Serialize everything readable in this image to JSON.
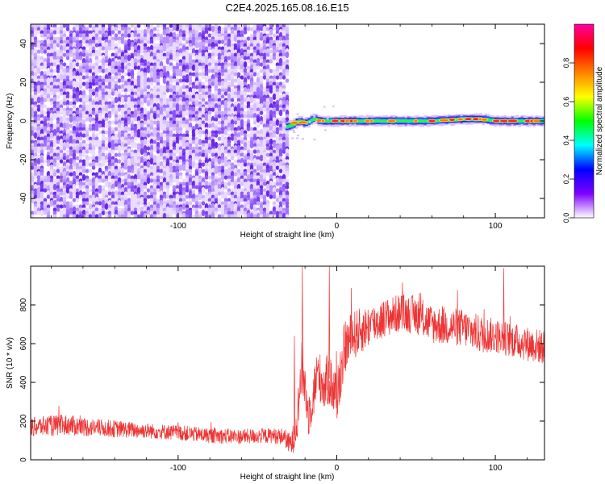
{
  "title": "C2E4.2025.165.08.16.E15",
  "chart_data": [
    {
      "type": "heatmap",
      "name": "spectrogram",
      "xlabel": "Height of straight line (km)",
      "ylabel": "Frequency (Hz)",
      "xlim": [
        -193,
        131
      ],
      "ylim": [
        -50,
        50
      ],
      "x_ticks": [
        -100,
        0,
        100
      ],
      "x_tick_labels": [
        "-100",
        "0",
        "100"
      ],
      "y_ticks": [
        -40,
        -20,
        0,
        20,
        40
      ],
      "y_tick_labels": [
        "-40",
        "-20",
        "0",
        "20",
        "40"
      ],
      "noise_region_x": [
        -193,
        -32
      ],
      "tone_region_x": [
        -32,
        131
      ],
      "tone_frequency": 0,
      "tone_track": {
        "x": [
          -32,
          -28,
          -25,
          -20,
          -15,
          -10,
          0,
          10,
          20,
          40,
          60,
          80,
          90,
          100,
          110,
          131
        ],
        "y": [
          -3,
          -2,
          0,
          -1,
          1,
          0,
          0,
          0,
          0,
          0,
          0,
          1,
          1,
          0,
          0,
          0
        ]
      },
      "grid": false,
      "colorbar": {
        "label": "Normalized spectral amplitude",
        "range": [
          0.0,
          1.0
        ],
        "ticks": [
          0.0,
          0.2,
          0.4,
          0.6,
          0.8
        ],
        "tick_labels": [
          "0.0",
          "0.2",
          "0.4",
          "0.6",
          "0.8"
        ],
        "colors": [
          "#ffffff",
          "#7f00ff",
          "#0000ff",
          "#00ffff",
          "#00ff00",
          "#ffff00",
          "#ff8000",
          "#ff0000",
          "#ff00a0"
        ]
      }
    },
    {
      "type": "line",
      "name": "snr",
      "xlabel": "Height of straight line (km)",
      "ylabel": "SNR (10 * v/v)",
      "xlim": [
        -193,
        131
      ],
      "ylim": [
        0,
        1000
      ],
      "x_ticks": [
        -100,
        0,
        100
      ],
      "x_tick_labels": [
        "-100",
        "0",
        "100"
      ],
      "y_ticks": [
        0,
        200,
        400,
        600,
        800
      ],
      "y_tick_labels": [
        "0",
        "200",
        "400",
        "600",
        "800"
      ],
      "line_color": "#ee3333",
      "grid": false,
      "series": [
        {
          "x": [
            -193,
            -180,
            -170,
            -160,
            -150,
            -140,
            -120,
            -100,
            -80,
            -60,
            -40,
            -33,
            -30,
            -28,
            -25,
            -22,
            -20,
            -18,
            -15,
            -12,
            -8,
            -5,
            0,
            5,
            10,
            20,
            30,
            40,
            50,
            60,
            70,
            80,
            90,
            100,
            110,
            120,
            131
          ],
          "y": [
            170,
            175,
            180,
            170,
            165,
            160,
            150,
            140,
            125,
            120,
            125,
            120,
            80,
            90,
            210,
            480,
            380,
            230,
            330,
            450,
            380,
            420,
            330,
            580,
            640,
            690,
            730,
            760,
            750,
            700,
            690,
            680,
            650,
            640,
            620,
            600,
            580
          ],
          "band": [
            50,
            55,
            55,
            50,
            45,
            45,
            40,
            40,
            40,
            40,
            40,
            45,
            60,
            70,
            110,
            140,
            130,
            120,
            130,
            130,
            130,
            140,
            150,
            140,
            130,
            110,
            100,
            100,
            100,
            100,
            100,
            100,
            100,
            90,
            90,
            90,
            90
          ]
        }
      ]
    }
  ]
}
